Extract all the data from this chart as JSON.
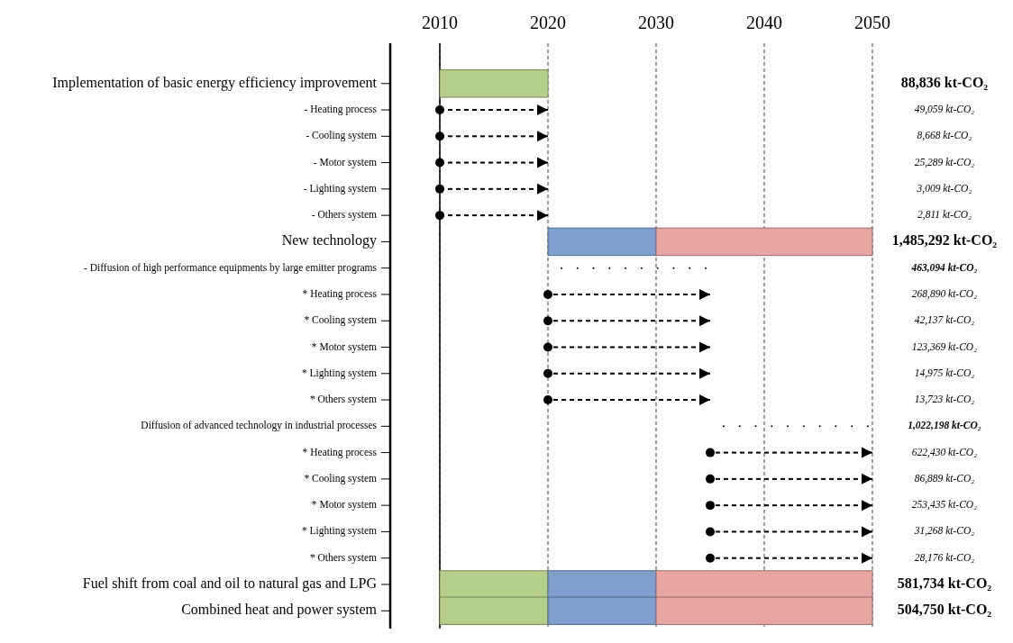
{
  "chart_data": {
    "type": "bar",
    "orientation": "horizontal",
    "categories": [
      "Implementation of basic energy efficiency improvement",
      "- Heating process",
      "- Cooling system",
      "- Motor system",
      "- Lighting system",
      "- Others system",
      "New technology",
      "- Diffusion of high performance equipments by large emitter programs",
      "* Heating process",
      "* Cooling system",
      "* Motor system",
      "* Lighting system",
      "* Others system",
      "Diffusion of advanced technology in industrial processes",
      "* Heating process",
      "* Cooling system",
      "* Motor system",
      "* Lighting system",
      "* Others system",
      "Fuel shift from coal and oil to natural gas and LPG",
      "Combined heat and power system"
    ],
    "series": [
      {
        "color": "#b5cf8a",
        "base": [
          2010,
          null,
          null,
          null,
          null,
          null,
          null,
          null,
          null,
          null,
          null,
          null,
          null,
          null,
          null,
          null,
          null,
          null,
          null,
          2010,
          2010
        ],
        "values": [
          10,
          null,
          null,
          null,
          null,
          null,
          null,
          null,
          null,
          null,
          null,
          null,
          null,
          null,
          null,
          null,
          null,
          null,
          null,
          10,
          10
        ]
      },
      {
        "color": "#7f9fcf",
        "base": [
          null,
          null,
          null,
          null,
          null,
          null,
          2020,
          null,
          null,
          null,
          null,
          null,
          null,
          null,
          null,
          null,
          null,
          null,
          null,
          2020,
          2020
        ],
        "values": [
          null,
          null,
          null,
          null,
          null,
          null,
          10,
          null,
          null,
          null,
          null,
          null,
          null,
          null,
          null,
          null,
          null,
          null,
          null,
          10,
          10
        ]
      },
      {
        "color": "#e8a6a3",
        "base": [
          null,
          null,
          null,
          null,
          null,
          null,
          2030,
          null,
          null,
          null,
          null,
          null,
          null,
          null,
          null,
          null,
          null,
          null,
          null,
          2030,
          2030
        ],
        "values": [
          null,
          null,
          null,
          null,
          null,
          null,
          20,
          null,
          null,
          null,
          null,
          null,
          null,
          null,
          null,
          null,
          null,
          null,
          null,
          20,
          20
        ]
      },
      {
        "color": "#000000",
        "line_style": "dashed",
        "marker": "circle",
        "base": [
          null,
          2010,
          2010,
          2010,
          2010,
          2010,
          null,
          null,
          2020,
          2020,
          2020,
          2020,
          2020,
          null,
          2035,
          2035,
          2035,
          2035,
          2035,
          null,
          null
        ],
        "values": [
          null,
          10,
          10,
          10,
          10,
          10,
          null,
          null,
          15,
          15,
          15,
          15,
          15,
          null,
          15,
          15,
          15,
          15,
          15,
          null,
          null
        ]
      }
    ],
    "value_labels": [
      "88,836 kt-CO₂",
      "49,059 kt-CO₂",
      "8,668 kt-CO₂",
      "25,289 kt-CO₂",
      "3,009 kt-CO₂",
      "2,811 kt-CO₂",
      "1,485,292 kt-CO₂",
      "463,094 kt-CO₂",
      "268,890 kt-CO₂",
      "42,137 kt-CO₂",
      "123,369 kt-CO₂",
      "14,975 kt-CO₂",
      "13,723 kt-CO₂",
      "1,022,198 kt-CO₂",
      "622,430 kt-CO₂",
      "86,889 kt-CO₂",
      "253,435 kt-CO₂",
      "31,268 kt-CO₂",
      "28,176 kt-CO₂",
      "581,734 kt-CO₂",
      "504,750 kt-CO₂"
    ],
    "xlim": [
      2010,
      2050
    ],
    "xticks": [
      2010,
      2020,
      2030,
      2040,
      2050
    ],
    "grid": "x"
  }
}
